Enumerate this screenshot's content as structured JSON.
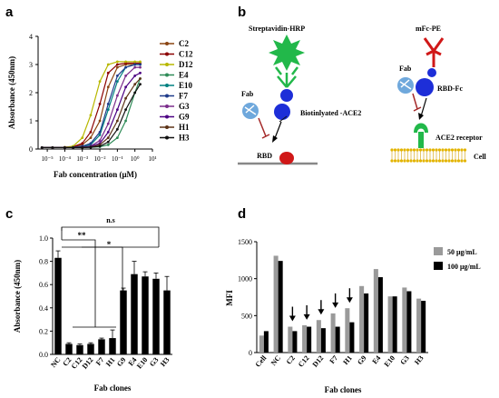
{
  "figure": {
    "panel_a": "a",
    "panel_b": "b",
    "panel_c": "c",
    "panel_d": "d"
  },
  "chart_data": [
    {
      "type": "line",
      "panel": "a",
      "xlabel": "Fab concentration (μM)",
      "ylabel": "Absorbance (450nm)",
      "xscale": "log",
      "xlim": [
        3e-06,
        10
      ],
      "ylim": [
        0,
        4
      ],
      "x_tick_labels": [
        "10⁻⁵",
        "10⁻⁴",
        "10⁻³",
        "10⁻²",
        "10⁻¹",
        "10⁰",
        "10¹"
      ],
      "y_tick_labels": [
        "0",
        "1",
        "2",
        "3",
        "4"
      ],
      "legend_position": "right",
      "x": [
        5e-06,
        2e-05,
        0.0001,
        0.0003,
        0.001,
        0.003,
        0.01,
        0.03,
        0.1,
        0.3,
        1,
        2
      ],
      "series": [
        {
          "name": "C2",
          "color": "#8B4513",
          "values": [
            0.05,
            0.05,
            0.06,
            0.08,
            0.15,
            0.4,
            1.0,
            2.2,
            2.9,
            3.0,
            3.0,
            3.0
          ]
        },
        {
          "name": "C12",
          "color": "#8B0000",
          "values": [
            0.05,
            0.05,
            0.06,
            0.08,
            0.2,
            0.6,
            1.6,
            2.7,
            3.0,
            3.05,
            3.05,
            3.05
          ]
        },
        {
          "name": "D12",
          "color": "#B8B800",
          "values": [
            0.05,
            0.05,
            0.06,
            0.1,
            0.4,
            1.2,
            2.4,
            3.0,
            3.1,
            3.1,
            3.1,
            3.1
          ]
        },
        {
          "name": "E4",
          "color": "#2E8B57",
          "values": [
            0.05,
            0.05,
            0.05,
            0.05,
            0.05,
            0.06,
            0.08,
            0.15,
            0.4,
            1.0,
            2.0,
            2.5
          ]
        },
        {
          "name": "E10",
          "color": "#008080",
          "values": [
            0.05,
            0.05,
            0.05,
            0.06,
            0.08,
            0.15,
            0.5,
            1.4,
            2.4,
            2.9,
            3.0,
            3.0
          ]
        },
        {
          "name": "F7",
          "color": "#1E3A8A",
          "values": [
            0.05,
            0.05,
            0.05,
            0.06,
            0.1,
            0.2,
            0.6,
            1.6,
            2.6,
            2.9,
            3.0,
            3.0
          ]
        },
        {
          "name": "G3",
          "color": "#7B2D8B",
          "values": [
            0.05,
            0.05,
            0.05,
            0.05,
            0.06,
            0.1,
            0.3,
            0.9,
            1.9,
            2.6,
            2.9,
            2.9
          ]
        },
        {
          "name": "G9",
          "color": "#4B0082",
          "values": [
            0.05,
            0.05,
            0.05,
            0.05,
            0.06,
            0.09,
            0.2,
            0.6,
            1.4,
            2.2,
            2.6,
            2.7
          ]
        },
        {
          "name": "H1",
          "color": "#5C3317",
          "values": [
            0.05,
            0.05,
            0.05,
            0.05,
            0.05,
            0.07,
            0.15,
            0.4,
            1.0,
            1.8,
            2.3,
            2.5
          ]
        },
        {
          "name": "H3",
          "color": "#111111",
          "values": [
            0.05,
            0.05,
            0.05,
            0.05,
            0.05,
            0.06,
            0.1,
            0.25,
            0.7,
            1.4,
            2.0,
            2.3
          ]
        }
      ]
    },
    {
      "type": "bar",
      "panel": "c",
      "xlabel": "Fab clones",
      "ylabel": "Absorbance (450nm)",
      "ylim": [
        0,
        1.0
      ],
      "y_tick_labels": [
        "0.0",
        "0.2",
        "0.4",
        "0.6",
        "0.8",
        "1.0"
      ],
      "categories": [
        "NC",
        "C2",
        "C12",
        "D12",
        "F7",
        "H1",
        "G9",
        "E4",
        "E10",
        "G3",
        "H3"
      ],
      "values": [
        0.83,
        0.09,
        0.08,
        0.09,
        0.13,
        0.14,
        0.55,
        0.69,
        0.67,
        0.65,
        0.55
      ],
      "errors": [
        0.06,
        0.01,
        0.01,
        0.01,
        0.01,
        0.07,
        0.02,
        0.11,
        0.04,
        0.05,
        0.12
      ],
      "significance": [
        "n.s",
        "**",
        "*"
      ]
    },
    {
      "type": "bar",
      "panel": "d",
      "xlabel": "Fab clones",
      "ylabel": "MFI",
      "ylim": [
        0,
        1500
      ],
      "y_tick_labels": [
        "0",
        "500",
        "1000",
        "1500"
      ],
      "legend_position": "top-right",
      "categories": [
        "Cell",
        "NC",
        "C2",
        "C12",
        "D12",
        "F7",
        "H1",
        "G9",
        "E4",
        "E10",
        "G3",
        "H3"
      ],
      "arrows": [
        "C2",
        "C12",
        "D12",
        "F7",
        "H1"
      ],
      "series": [
        {
          "name": "50 μg/mL",
          "color": "#9a9a9a",
          "values": [
            230,
            1310,
            350,
            370,
            440,
            530,
            600,
            900,
            1130,
            760,
            880,
            730
          ]
        },
        {
          "name": "100 μg/mL",
          "color": "#000000",
          "values": [
            290,
            1240,
            290,
            350,
            330,
            350,
            410,
            800,
            1020,
            760,
            830,
            700
          ]
        }
      ]
    }
  ],
  "schematic": {
    "left_top": "Streptavidin-HRP",
    "left_fab": "Fab",
    "left_ace2": "Biotinlyated -ACE2",
    "left_rbd": "RBD",
    "right_top": "mFc-PE",
    "right_fab": "Fab",
    "right_rbdfc": "RBD-Fc",
    "right_receptor": "ACE2 receptor",
    "right_cell": "Cell"
  }
}
